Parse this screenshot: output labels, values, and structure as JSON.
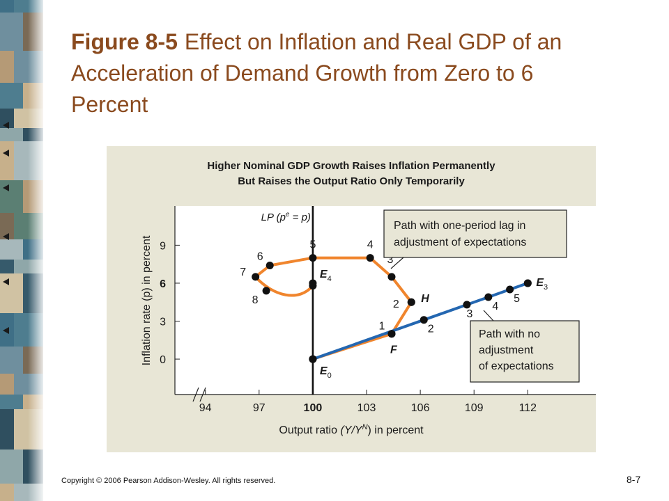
{
  "slide": {
    "figure_number": "Figure 8-5",
    "title": "Effect on Inflation and Real GDP of an Acceleration of Demand Growth from Zero to 6 Percent",
    "copyright": "Copyright © 2006 Pearson Addison-Wesley. All rights reserved.",
    "slide_number": "8-7"
  },
  "colors": {
    "title": "#8a4a1e",
    "orange_path": "#f0852d",
    "blue_path": "#2467b1",
    "panel_bg": "#e8e6d6",
    "callout_bg": "#e8e6d6"
  },
  "chart_data": {
    "type": "line",
    "title_line1": "Higher Nominal GDP Growth Raises Inflation Permanently",
    "title_line2": "But Raises the Output Ratio Only Temporarily",
    "xlabel_main": "Output ratio",
    "xlabel_var": "(Y/Y",
    "xlabel_sup": "N",
    "xlabel_close": ")",
    "xlabel_unit": "in percent",
    "ylabel": "Inflation rate (p) in percent",
    "x_ticks": [
      {
        "value": 94,
        "label": "94",
        "bold": false
      },
      {
        "value": 97,
        "label": "97",
        "bold": false
      },
      {
        "value": 100,
        "label": "100",
        "bold": true
      },
      {
        "value": 103,
        "label": "103",
        "bold": false
      },
      {
        "value": 106,
        "label": "106",
        "bold": false
      },
      {
        "value": 109,
        "label": "109",
        "bold": false
      },
      {
        "value": 112,
        "label": "112",
        "bold": false
      }
    ],
    "y_ticks": [
      {
        "value": 0,
        "label": "0",
        "bold": false
      },
      {
        "value": 3,
        "label": "3",
        "bold": false
      },
      {
        "value": 6,
        "label": "6",
        "bold": true
      },
      {
        "value": 9,
        "label": "9",
        "bold": false
      }
    ],
    "xlim": [
      92.3,
      115.8
    ],
    "ylim": [
      -2.8,
      12.1
    ],
    "axis_break": true,
    "lp_line": {
      "x": 100,
      "label": "LP (p",
      "sup": "e",
      "label_end": " = p)"
    },
    "series": [
      {
        "name": "Path with one-period lag in adjustment of expectations",
        "color": "#f0852d",
        "points": [
          {
            "x": 100,
            "y": 0,
            "label": ""
          },
          {
            "x": 104.4,
            "y": 2.0,
            "label": "1"
          },
          {
            "x": 105.5,
            "y": 4.5,
            "label": "2"
          },
          {
            "x": 104.4,
            "y": 6.5,
            "label": "3"
          },
          {
            "x": 103.2,
            "y": 8.0,
            "label": "4"
          },
          {
            "x": 100,
            "y": 8.0,
            "label": "5"
          },
          {
            "x": 97.6,
            "y": 7.4,
            "label": "6"
          },
          {
            "x": 96.8,
            "y": 6.5,
            "label": "7"
          },
          {
            "x": 97.4,
            "y": 5.4,
            "label": "8"
          },
          {
            "x": 100,
            "y": 5.8,
            "label": ""
          }
        ]
      },
      {
        "name": "Path with no adjustment of expectations",
        "color": "#2467b1",
        "points": [
          {
            "x": 100,
            "y": 0,
            "label": ""
          },
          {
            "x": 106.2,
            "y": 3.1,
            "label": "2"
          },
          {
            "x": 108.6,
            "y": 4.3,
            "label": "3"
          },
          {
            "x": 109.8,
            "y": 4.9,
            "label": "4"
          },
          {
            "x": 111.0,
            "y": 5.5,
            "label": "5"
          },
          {
            "x": 112,
            "y": 6.0,
            "label": ""
          }
        ]
      }
    ],
    "named_points": [
      {
        "id": "E0",
        "x": 100,
        "y": 0,
        "base": "E",
        "sub": "0"
      },
      {
        "id": "F",
        "x": 104.4,
        "y": 2.0,
        "base": "F",
        "sub": ""
      },
      {
        "id": "H",
        "x": 105.5,
        "y": 4.5,
        "base": "H",
        "sub": ""
      },
      {
        "id": "E4",
        "x": 100,
        "y": 6.0,
        "base": "E",
        "sub": "4"
      },
      {
        "id": "E3",
        "x": 112,
        "y": 6.0,
        "base": "E",
        "sub": "3"
      }
    ],
    "callouts": {
      "orange_line1": "Path with one-period lag in",
      "orange_line2": "adjustment of expectations",
      "blue_line1": "Path with no",
      "blue_line2": "adjustment",
      "blue_line3": "of expectations"
    }
  }
}
